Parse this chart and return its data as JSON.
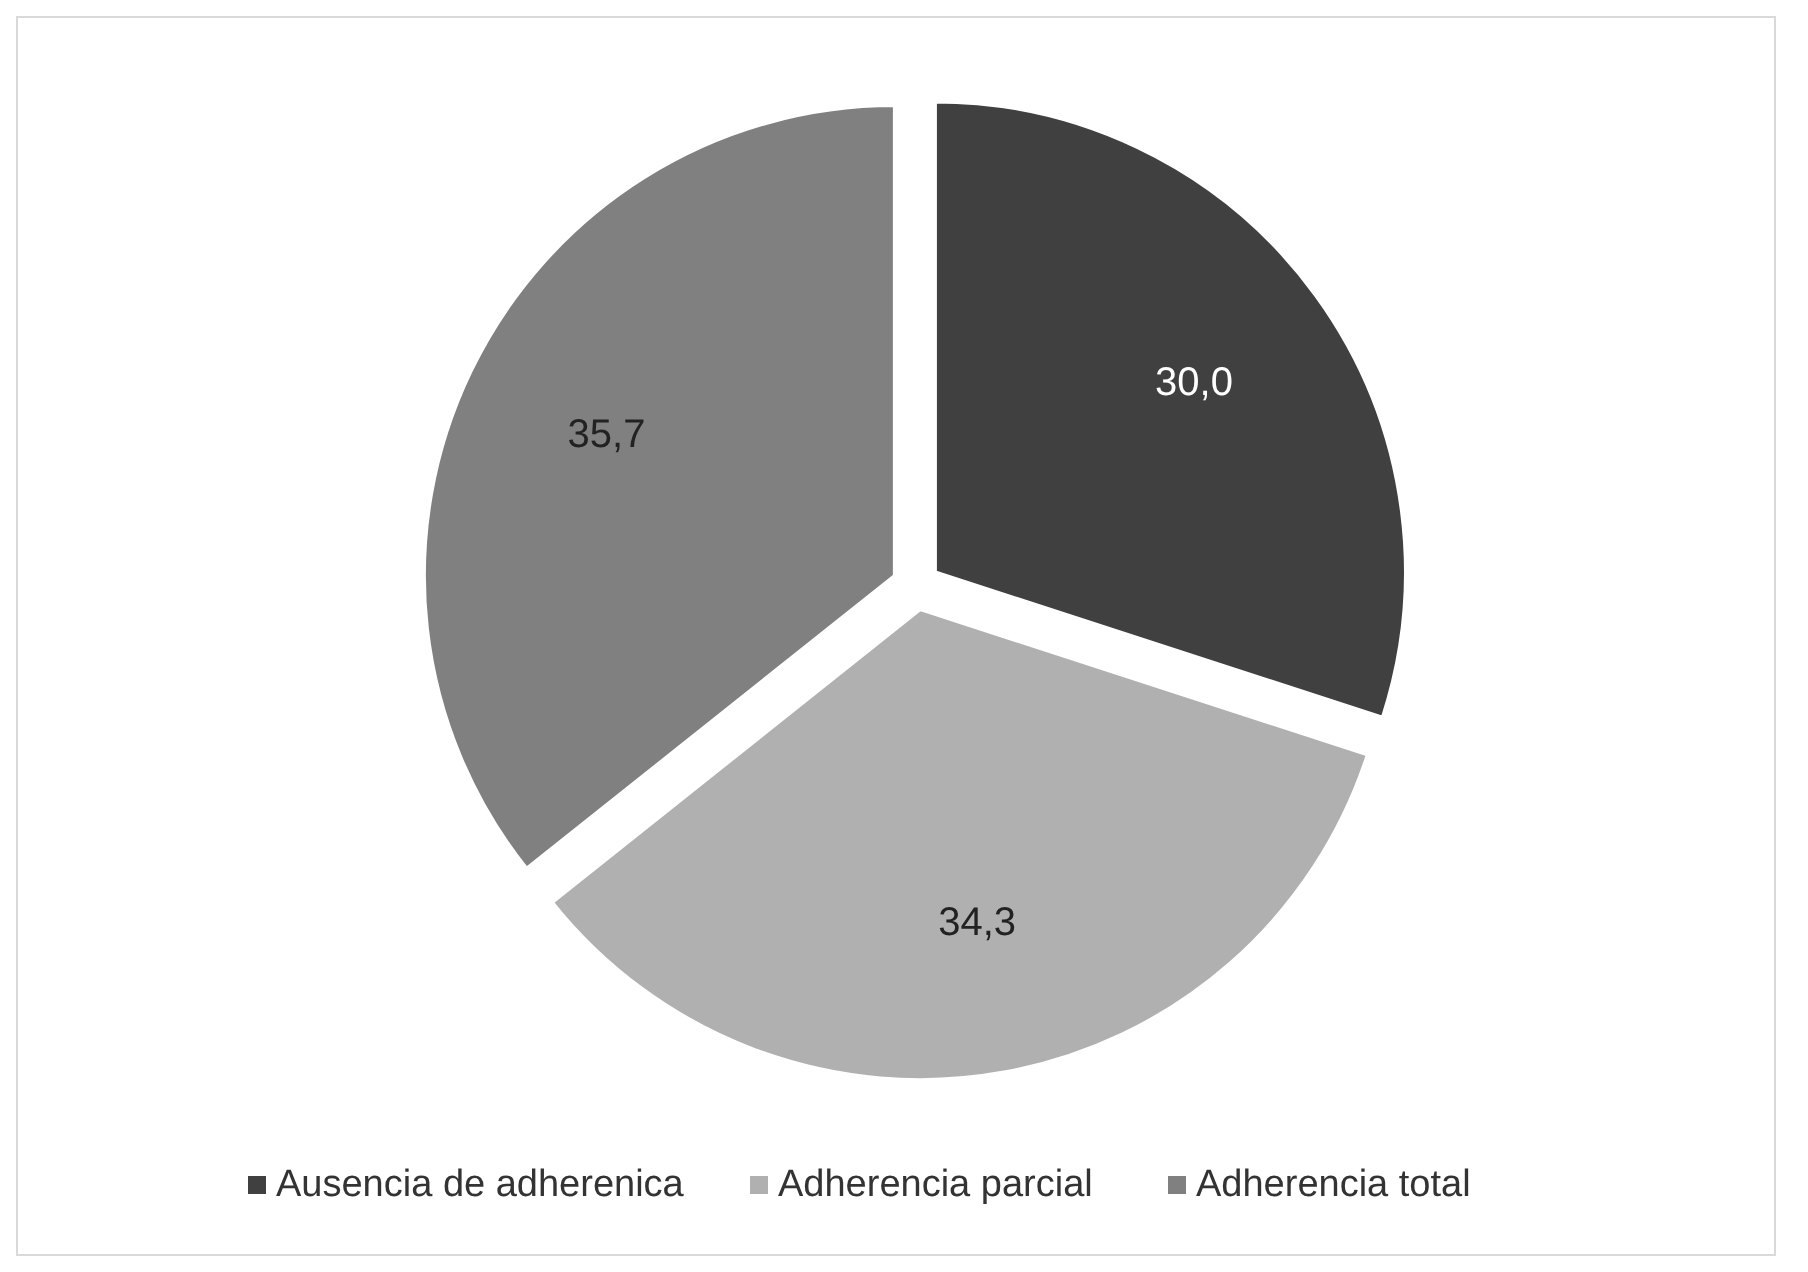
{
  "chart_data": {
    "type": "pie",
    "categories": [
      "Ausencia de adherenica",
      "Adherencia parcial",
      "Adherencia total"
    ],
    "values": [
      30.0,
      34.3,
      35.7
    ],
    "colors": [
      "#404040",
      "#b0b0b0",
      "#808080"
    ],
    "value_labels": [
      "30,0",
      "34,3",
      "35,7"
    ],
    "legend": "bottom"
  }
}
